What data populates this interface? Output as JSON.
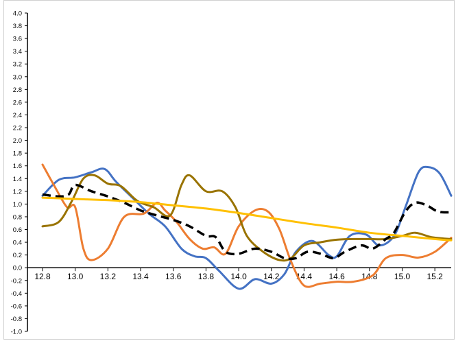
{
  "chart_data": {
    "type": "line",
    "title": "",
    "xlabel": "",
    "ylabel": "",
    "xlim": [
      12.8,
      15.3
    ],
    "ylim": [
      -1.0,
      4.0
    ],
    "x_ticks": [
      "12.8",
      "13.0",
      "13.2",
      "13.4",
      "13.6",
      "13.8",
      "14.0",
      "14.2",
      "14.4",
      "14.6",
      "14.8",
      "15.0",
      "15.2"
    ],
    "y_ticks": [
      "-1.0",
      "-0.8",
      "-0.6",
      "-0.4",
      "-0.2",
      "0.0",
      "0.2",
      "0.4",
      "0.6",
      "0.8",
      "1.0",
      "1.2",
      "1.4",
      "1.6",
      "1.8",
      "2.0",
      "2.2",
      "2.4",
      "2.6",
      "2.8",
      "3.0",
      "3.2",
      "3.4",
      "3.6",
      "3.8",
      "4.0"
    ],
    "grid": false,
    "legend": "none",
    "series": [
      {
        "color": "#4472C4",
        "style": "solid",
        "points": [
          [
            12.8,
            1.13
          ],
          [
            12.9,
            1.38
          ],
          [
            13.0,
            1.42
          ],
          [
            13.1,
            1.5
          ],
          [
            13.18,
            1.55
          ],
          [
            13.25,
            1.35
          ],
          [
            13.35,
            1.1
          ],
          [
            13.45,
            0.85
          ],
          [
            13.55,
            0.65
          ],
          [
            13.65,
            0.3
          ],
          [
            13.73,
            0.18
          ],
          [
            13.8,
            0.15
          ],
          [
            13.88,
            -0.05
          ],
          [
            14.0,
            -0.33
          ],
          [
            14.1,
            -0.18
          ],
          [
            14.2,
            -0.25
          ],
          [
            14.28,
            -0.1
          ],
          [
            14.35,
            0.25
          ],
          [
            14.45,
            0.42
          ],
          [
            14.55,
            0.2
          ],
          [
            14.6,
            0.18
          ],
          [
            14.68,
            0.5
          ],
          [
            14.78,
            0.52
          ],
          [
            14.86,
            0.35
          ],
          [
            14.95,
            0.5
          ],
          [
            15.02,
            0.95
          ],
          [
            15.1,
            1.5
          ],
          [
            15.16,
            1.58
          ],
          [
            15.23,
            1.48
          ],
          [
            15.3,
            1.13
          ]
        ]
      },
      {
        "color": "#ED7D31",
        "style": "solid",
        "points": [
          [
            12.8,
            1.62
          ],
          [
            12.88,
            1.25
          ],
          [
            12.95,
            0.95
          ],
          [
            13.0,
            0.95
          ],
          [
            13.05,
            0.3
          ],
          [
            13.1,
            0.12
          ],
          [
            13.2,
            0.3
          ],
          [
            13.3,
            0.8
          ],
          [
            13.42,
            0.85
          ],
          [
            13.5,
            1.02
          ],
          [
            13.55,
            0.9
          ],
          [
            13.62,
            0.72
          ],
          [
            13.7,
            0.45
          ],
          [
            13.78,
            0.3
          ],
          [
            13.85,
            0.32
          ],
          [
            13.92,
            0.22
          ],
          [
            14.0,
            0.65
          ],
          [
            14.1,
            0.9
          ],
          [
            14.18,
            0.88
          ],
          [
            14.25,
            0.6
          ],
          [
            14.32,
            0.1
          ],
          [
            14.4,
            -0.28
          ],
          [
            14.5,
            -0.25
          ],
          [
            14.6,
            -0.22
          ],
          [
            14.7,
            -0.22
          ],
          [
            14.82,
            -0.12
          ],
          [
            14.9,
            0.15
          ],
          [
            15.0,
            0.2
          ],
          [
            15.1,
            0.16
          ],
          [
            15.2,
            0.25
          ],
          [
            15.3,
            0.47
          ]
        ]
      },
      {
        "color": "#997300",
        "style": "solid",
        "points": [
          [
            12.8,
            0.65
          ],
          [
            12.9,
            0.72
          ],
          [
            12.98,
            1.05
          ],
          [
            13.05,
            1.4
          ],
          [
            13.12,
            1.45
          ],
          [
            13.2,
            1.32
          ],
          [
            13.28,
            1.28
          ],
          [
            13.38,
            1.05
          ],
          [
            13.48,
            0.95
          ],
          [
            13.58,
            0.82
          ],
          [
            13.65,
            1.3
          ],
          [
            13.7,
            1.45
          ],
          [
            13.8,
            1.2
          ],
          [
            13.9,
            1.2
          ],
          [
            13.98,
            0.95
          ],
          [
            14.05,
            0.5
          ],
          [
            14.15,
            0.25
          ],
          [
            14.25,
            0.12
          ],
          [
            14.32,
            0.15
          ],
          [
            14.4,
            0.35
          ],
          [
            14.5,
            0.4
          ],
          [
            14.6,
            0.44
          ],
          [
            14.7,
            0.45
          ],
          [
            14.8,
            0.45
          ],
          [
            14.9,
            0.45
          ],
          [
            15.0,
            0.5
          ],
          [
            15.08,
            0.55
          ],
          [
            15.18,
            0.48
          ],
          [
            15.3,
            0.45
          ]
        ]
      },
      {
        "color": "#000000",
        "style": "dashed",
        "points": [
          [
            12.8,
            1.15
          ],
          [
            12.9,
            1.12
          ],
          [
            12.96,
            1.15
          ],
          [
            13.0,
            1.3
          ],
          [
            13.1,
            1.2
          ],
          [
            13.2,
            1.12
          ],
          [
            13.3,
            1.02
          ],
          [
            13.4,
            0.9
          ],
          [
            13.5,
            0.82
          ],
          [
            13.6,
            0.75
          ],
          [
            13.7,
            0.65
          ],
          [
            13.8,
            0.5
          ],
          [
            13.86,
            0.48
          ],
          [
            13.92,
            0.25
          ],
          [
            14.0,
            0.22
          ],
          [
            14.1,
            0.3
          ],
          [
            14.2,
            0.25
          ],
          [
            14.28,
            0.15
          ],
          [
            14.35,
            0.15
          ],
          [
            14.42,
            0.25
          ],
          [
            14.5,
            0.22
          ],
          [
            14.58,
            0.15
          ],
          [
            14.65,
            0.25
          ],
          [
            14.75,
            0.35
          ],
          [
            14.82,
            0.3
          ],
          [
            14.9,
            0.45
          ],
          [
            14.95,
            0.55
          ],
          [
            15.02,
            0.88
          ],
          [
            15.08,
            1.02
          ],
          [
            15.15,
            0.98
          ],
          [
            15.22,
            0.88
          ],
          [
            15.3,
            0.87
          ]
        ]
      },
      {
        "color": "#FFC000",
        "style": "solid",
        "points": [
          [
            12.8,
            1.1
          ],
          [
            13.0,
            1.08
          ],
          [
            13.2,
            1.06
          ],
          [
            13.4,
            1.03
          ],
          [
            13.6,
            0.98
          ],
          [
            13.8,
            0.93
          ],
          [
            14.0,
            0.86
          ],
          [
            14.2,
            0.78
          ],
          [
            14.4,
            0.7
          ],
          [
            14.6,
            0.63
          ],
          [
            14.8,
            0.55
          ],
          [
            15.0,
            0.5
          ],
          [
            15.2,
            0.45
          ],
          [
            15.3,
            0.43
          ]
        ]
      }
    ]
  }
}
